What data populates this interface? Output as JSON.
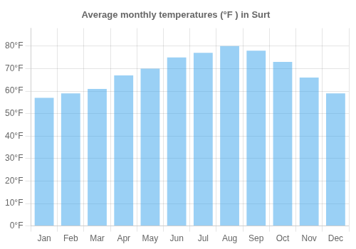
{
  "chart_data": {
    "type": "bar",
    "title": "Average monthly temperatures (°F ) in Surt",
    "categories": [
      "Jan",
      "Feb",
      "Mar",
      "Apr",
      "May",
      "Jun",
      "Jul",
      "Aug",
      "Sep",
      "Oct",
      "Nov",
      "Dec"
    ],
    "values": [
      57,
      59,
      61,
      67,
      70,
      75,
      77,
      80,
      78,
      73,
      66,
      59
    ],
    "ylim": [
      0,
      88
    ],
    "yticks": [
      {
        "value": 0,
        "label": "0°F"
      },
      {
        "value": 10,
        "label": "10°F"
      },
      {
        "value": 20,
        "label": "20°F"
      },
      {
        "value": 30,
        "label": "30°F"
      },
      {
        "value": 40,
        "label": "40°F"
      },
      {
        "value": 50,
        "label": "50°F"
      },
      {
        "value": 60,
        "label": "60°F"
      },
      {
        "value": 70,
        "label": "70°F"
      },
      {
        "value": 80,
        "label": "80°F"
      }
    ],
    "grid": true
  }
}
